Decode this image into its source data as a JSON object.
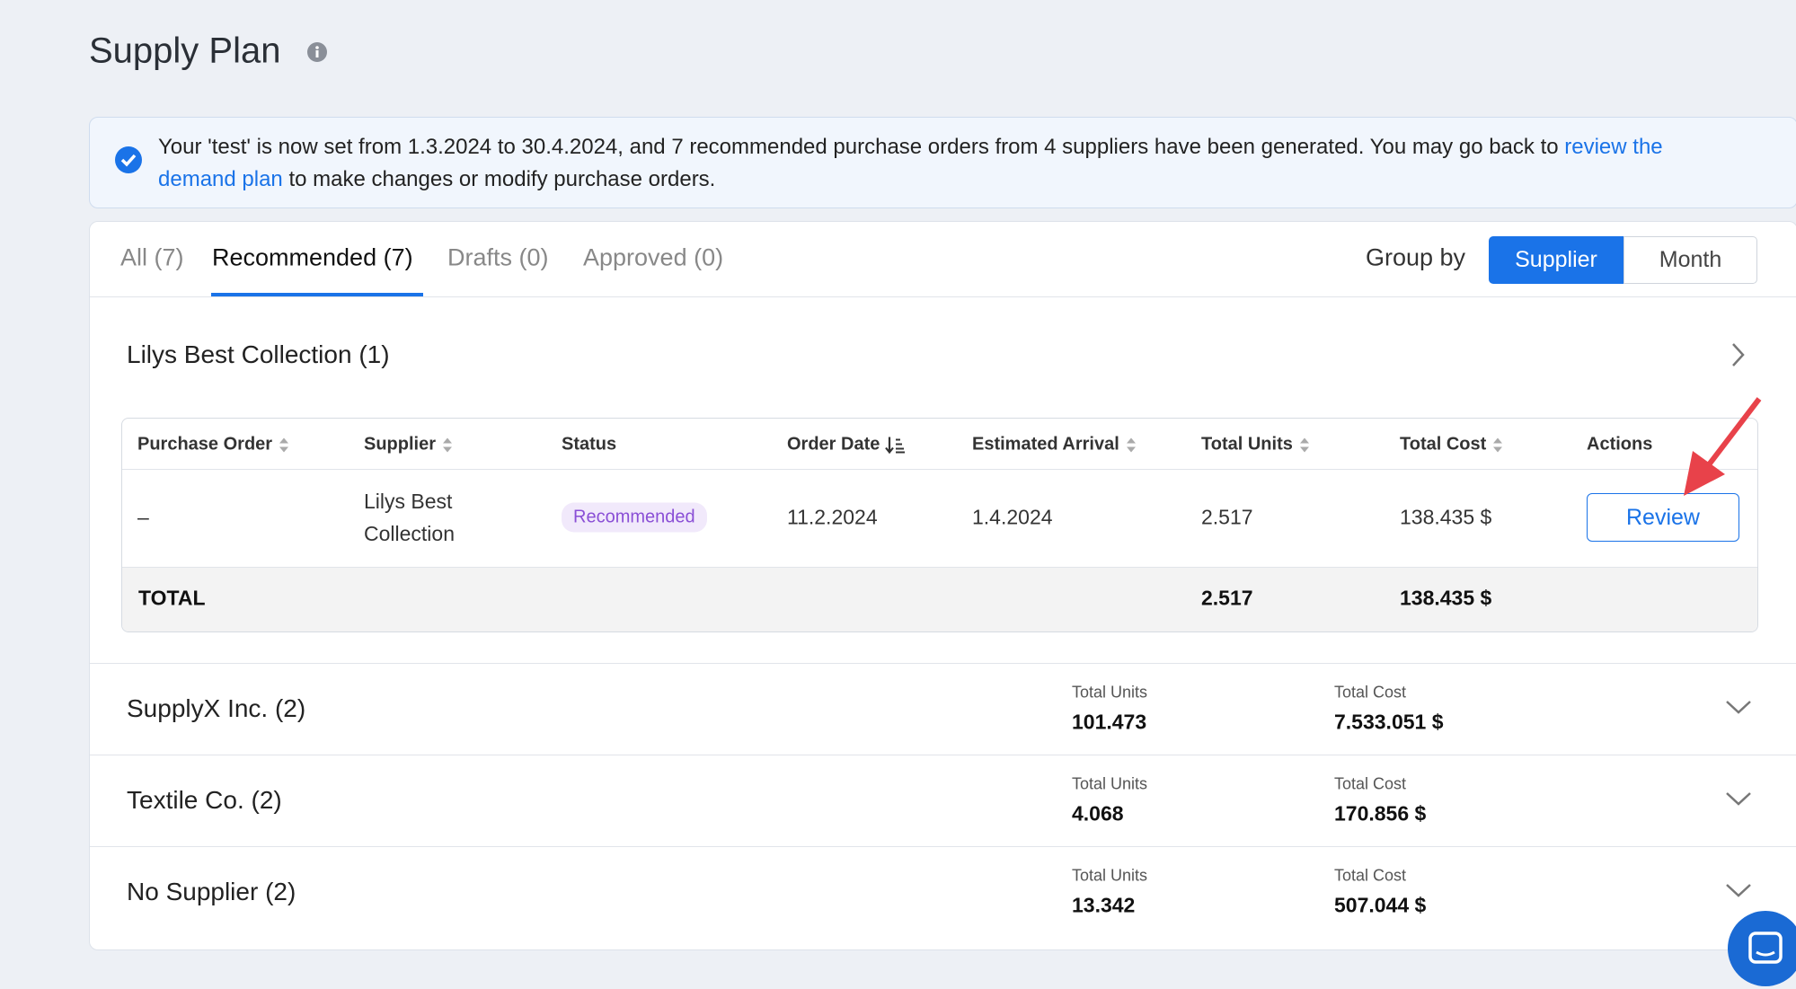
{
  "header": {
    "title": "Supply Plan"
  },
  "alert": {
    "text_before": "Your 'test' is now set from 1.3.2024 to 30.4.2024, and 7 recommended purchase orders from 4 suppliers have been generated. You may go back to ",
    "link": "review the demand plan",
    "text_after": " to make changes or modify purchase orders."
  },
  "tabs": [
    "All (7)",
    "Recommended (7)",
    "Drafts (0)",
    "Approved (0)"
  ],
  "group_by": {
    "label": "Group by",
    "options": [
      "Supplier",
      "Month"
    ]
  },
  "groups": [
    {
      "name": "Lilys Best Collection (1)",
      "table": {
        "columns": [
          "Purchase Order",
          "Supplier",
          "Status",
          "Order Date",
          "Estimated Arrival",
          "Total Units",
          "Total Cost",
          "Actions"
        ],
        "rows": [
          [
            "–",
            "Lilys Best Collection",
            "Recommended",
            "11.2.2024",
            "1.4.2024",
            "2.517",
            "138.435 $",
            "Review"
          ]
        ],
        "total": [
          "TOTAL",
          "2.517",
          "138.435 $"
        ]
      }
    },
    {
      "name": "SupplyX Inc. (2)",
      "units_label": "Total Units",
      "units": "101.473",
      "cost_label": "Total Cost",
      "cost": "7.533.051 $"
    },
    {
      "name": "Textile Co. (2)",
      "units_label": "Total Units",
      "units": "4.068",
      "cost_label": "Total Cost",
      "cost": "170.856 $"
    },
    {
      "name": "No Supplier (2)",
      "units_label": "Total Units",
      "units": "13.342",
      "cost_label": "Total Cost",
      "cost": "507.044 $"
    }
  ]
}
